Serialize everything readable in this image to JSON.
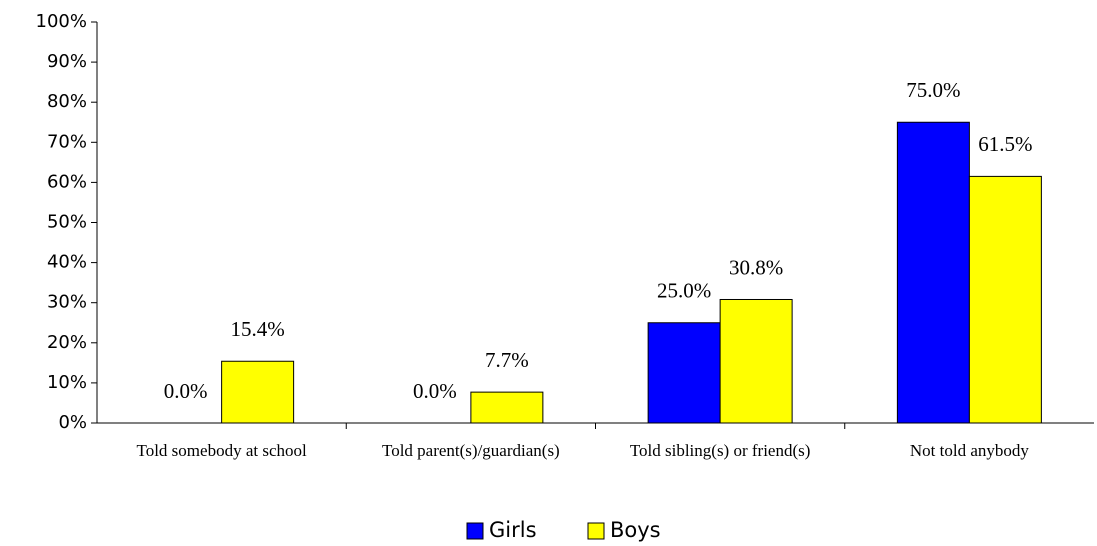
{
  "chart_data": {
    "type": "bar",
    "categories": [
      "Told somebody at school",
      "Told parent(s)/guardian(s)",
      "Told sibling(s) or friend(s)",
      "Not told anybody"
    ],
    "series": [
      {
        "name": "Girls",
        "color": "#0000ff",
        "values": [
          0,
          0,
          25,
          75
        ],
        "value_labels": [
          "0.0%",
          "0.0%",
          "25.0%",
          "75.0%"
        ]
      },
      {
        "name": "Boys",
        "color": "#ffff00",
        "values": [
          15.4,
          7.7,
          30.8,
          61.5
        ],
        "value_labels": [
          "15.4%",
          "7.7%",
          "30.8%",
          "61.5%"
        ]
      }
    ],
    "ylim": [
      0,
      100
    ],
    "yticks": [
      {
        "value": 0,
        "label": "0%"
      },
      {
        "value": 10,
        "label": "10%"
      },
      {
        "value": 20,
        "label": "20%"
      },
      {
        "value": 30,
        "label": "30%"
      },
      {
        "value": 40,
        "label": "40%"
      },
      {
        "value": 50,
        "label": "50%"
      },
      {
        "value": 60,
        "label": "60%"
      },
      {
        "value": 70,
        "label": "70%"
      },
      {
        "value": 80,
        "label": "80%"
      },
      {
        "value": 90,
        "label": "90%"
      },
      {
        "value": 100,
        "label": "100%"
      }
    ],
    "legend": "bottom",
    "grid": false
  }
}
